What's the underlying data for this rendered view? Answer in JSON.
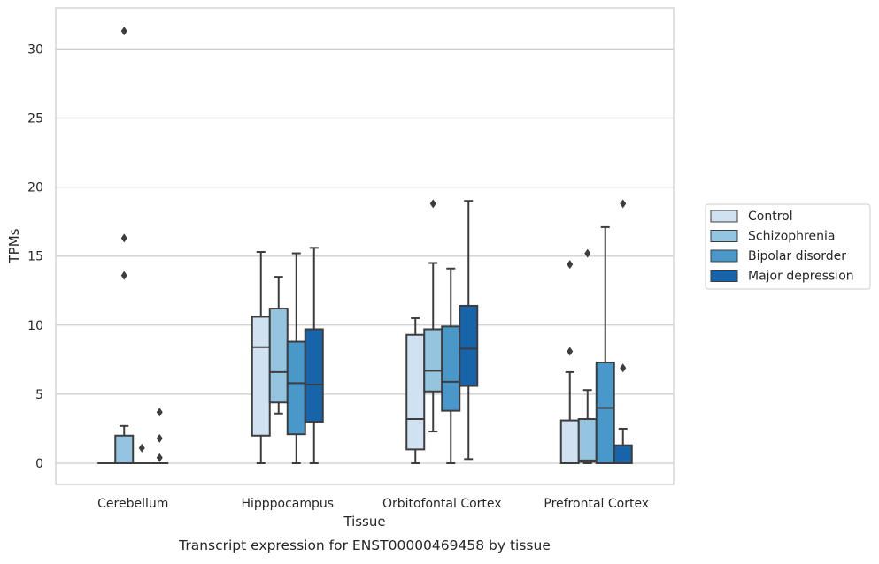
{
  "chart_data": {
    "type": "box",
    "title": "",
    "caption": "Transcript expression for ENST00000469458 by tissue",
    "xlabel": "Tissue",
    "ylabel": "TPMs",
    "ylim": [
      -1.5,
      32.5
    ],
    "yticks": [
      0,
      5,
      10,
      15,
      20,
      25,
      30
    ],
    "grid": "horizontal",
    "legend_position": "right",
    "categories": [
      "Cerebellum",
      "Hipppocampus",
      "Orbitofontal Cortex",
      "Prefrontal Cortex"
    ],
    "series": [
      {
        "name": "Control",
        "color": "#d0e1f2",
        "boxes": [
          {
            "whislo": 0,
            "q1": 0,
            "med": 0,
            "q3": 0,
            "whishi": 0,
            "fliers": []
          },
          {
            "whislo": 0,
            "q1": 2.0,
            "med": 8.4,
            "q3": 10.6,
            "whishi": 15.3,
            "fliers": []
          },
          {
            "whislo": 0,
            "q1": 1.0,
            "med": 3.2,
            "q3": 9.3,
            "whishi": 10.5,
            "fliers": []
          },
          {
            "whislo": 0,
            "q1": 0,
            "med": 0,
            "q3": 3.1,
            "whishi": 6.6,
            "fliers": [
              8.1,
              14.4
            ]
          }
        ]
      },
      {
        "name": "Schizophrenia",
        "color": "#94c4df",
        "boxes": [
          {
            "whislo": 0,
            "q1": 0,
            "med": 0,
            "q3": 2.0,
            "whishi": 2.7,
            "fliers": [
              13.6,
              16.3,
              31.3
            ]
          },
          {
            "whislo": 3.6,
            "q1": 4.4,
            "med": 6.6,
            "q3": 11.2,
            "whishi": 13.5,
            "fliers": []
          },
          {
            "whislo": 2.3,
            "q1": 5.2,
            "med": 6.7,
            "q3": 9.7,
            "whishi": 14.5,
            "fliers": [
              18.8
            ]
          },
          {
            "whislo": 0,
            "q1": 0.1,
            "med": 0.2,
            "q3": 3.2,
            "whishi": 5.3,
            "fliers": [
              15.2
            ]
          }
        ]
      },
      {
        "name": "Bipolar disorder",
        "color": "#4a98c9",
        "boxes": [
          {
            "whislo": 0,
            "q1": 0,
            "med": 0,
            "q3": 0,
            "whishi": 0,
            "fliers": [
              1.1
            ]
          },
          {
            "whislo": 0,
            "q1": 2.1,
            "med": 5.8,
            "q3": 8.8,
            "whishi": 15.2,
            "fliers": []
          },
          {
            "whislo": 0,
            "q1": 3.8,
            "med": 5.9,
            "q3": 9.9,
            "whishi": 14.1,
            "fliers": []
          },
          {
            "whislo": 0,
            "q1": 0,
            "med": 4.0,
            "q3": 7.3,
            "whishi": 17.1,
            "fliers": []
          }
        ]
      },
      {
        "name": "Major depression",
        "color": "#1764ab",
        "boxes": [
          {
            "whislo": 0,
            "q1": 0,
            "med": 0,
            "q3": 0,
            "whishi": 0,
            "fliers": [
              0.4,
              1.8,
              3.7
            ]
          },
          {
            "whislo": 0,
            "q1": 3.0,
            "med": 5.7,
            "q3": 9.7,
            "whishi": 15.6,
            "fliers": []
          },
          {
            "whislo": 0.3,
            "q1": 5.6,
            "med": 8.3,
            "q3": 11.4,
            "whishi": 19.0,
            "fliers": []
          },
          {
            "whislo": 0,
            "q1": 0,
            "med": 0,
            "q3": 1.3,
            "whishi": 2.5,
            "fliers": [
              6.9,
              18.8
            ]
          }
        ]
      }
    ]
  }
}
